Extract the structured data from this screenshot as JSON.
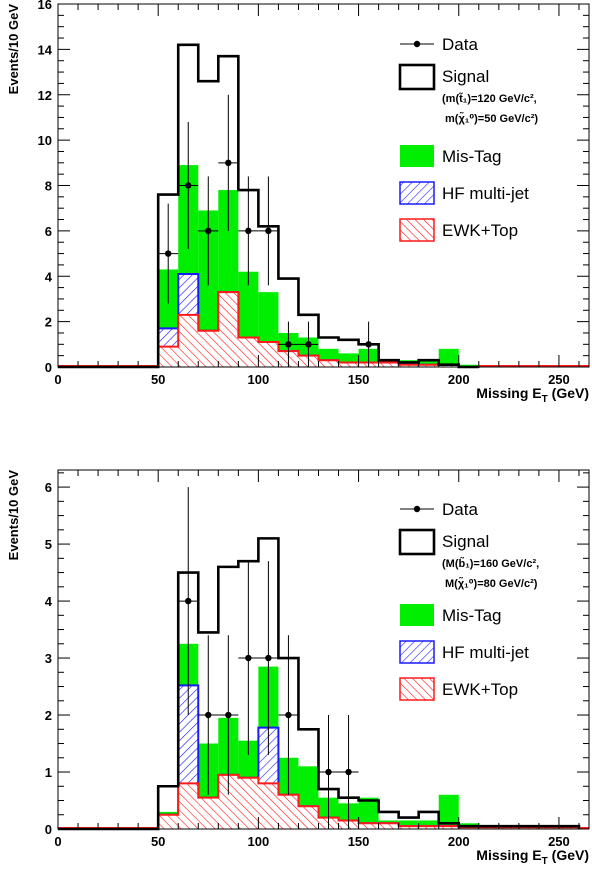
{
  "chart_data": [
    {
      "type": "bar",
      "xlabel_main": "Missing E",
      "xlabel_sub": "T",
      "xlabel_unit": " (GeV)",
      "ylabel": "Events/10 GeV",
      "xlim": [
        0,
        265
      ],
      "ylim": [
        0,
        16
      ],
      "xticks": [
        0,
        50,
        100,
        150,
        200,
        250
      ],
      "yticks": [
        0,
        2,
        4,
        6,
        8,
        10,
        12,
        14,
        16
      ],
      "bin_width": 10,
      "legend": {
        "data": "Data",
        "signal": "Signal",
        "note_line1": "(m(t̃₁)=120 GeV/c², ",
        "note_line2": "m(χ̃₁⁰)=50 GeV/c²)",
        "mistag": "Mis-Tag",
        "hf": "HF multi-jet",
        "ewk": "EWK+Top"
      },
      "bin_edges": [
        50,
        60,
        70,
        80,
        90,
        100,
        110,
        120,
        130,
        140,
        150,
        160,
        170,
        180,
        190,
        200
      ],
      "ewk": [
        0.9,
        2.3,
        1.6,
        3.3,
        1.3,
        1.1,
        0.7,
        0.5,
        0.3,
        0.2,
        0.2,
        0.2,
        0.1,
        0.1,
        0.1,
        0.0
      ],
      "hf": [
        1.7,
        4.1,
        1.6,
        3.3,
        1.3,
        1.1,
        0.7,
        0.5,
        0.3,
        0.2,
        0.2,
        0.2,
        0.1,
        0.1,
        0.1,
        0.0
      ],
      "mistag": [
        4.3,
        8.9,
        6.9,
        7.8,
        4.2,
        3.3,
        1.5,
        1.3,
        0.8,
        0.6,
        0.8,
        0.3,
        0.3,
        0.3,
        0.8,
        0.1
      ],
      "signal": [
        7.6,
        14.2,
        12.6,
        13.7,
        7.8,
        6.2,
        3.9,
        2.3,
        1.3,
        1.2,
        1.0,
        0.3,
        0.2,
        0.3,
        0.1,
        0.0
      ],
      "data_points": [
        {
          "x": 55,
          "y": 5,
          "err": 2.2
        },
        {
          "x": 65,
          "y": 8,
          "err": 2.8
        },
        {
          "x": 75,
          "y": 6,
          "err": 2.4
        },
        {
          "x": 85,
          "y": 9,
          "err": 3.0
        },
        {
          "x": 95,
          "y": 6,
          "err": 2.4
        },
        {
          "x": 105,
          "y": 6,
          "err": 2.4
        },
        {
          "x": 115,
          "y": 1,
          "err": 1.0
        },
        {
          "x": 125,
          "y": 1,
          "err": 1.0
        },
        {
          "x": 155,
          "y": 1,
          "err": 1.0
        }
      ]
    },
    {
      "type": "bar",
      "xlabel_main": "Missing E",
      "xlabel_sub": "T",
      "xlabel_unit": " (GeV)",
      "ylabel": "Events/10 GeV",
      "xlim": [
        0,
        265
      ],
      "ylim": [
        0,
        6.3
      ],
      "xticks": [
        0,
        50,
        100,
        150,
        200,
        250
      ],
      "yticks": [
        0,
        1,
        2,
        3,
        4,
        5,
        6
      ],
      "bin_width": 10,
      "legend": {
        "data": "Data",
        "signal": "Signal",
        "note_line1": "(M(b̃₁)=160 GeV/c²,",
        "note_line2": "M(χ̃₁⁰)=80 GeV/c²)",
        "mistag": "Mis-Tag",
        "hf": "HF multi-jet",
        "ewk": "EWK+Top"
      },
      "bin_edges": [
        50,
        60,
        70,
        80,
        90,
        100,
        110,
        120,
        130,
        140,
        150,
        160,
        170,
        180,
        190,
        200,
        210,
        220,
        230,
        240,
        250
      ],
      "ewk": [
        0.25,
        0.8,
        0.55,
        0.95,
        0.9,
        0.8,
        0.6,
        0.4,
        0.2,
        0.15,
        0.1,
        0.1,
        0.05,
        0.05,
        0.05,
        0.03,
        0.03,
        0.03,
        0.03,
        0.03,
        0.03
      ],
      "hf": [
        0.25,
        2.52,
        0.55,
        0.95,
        0.9,
        1.78,
        0.6,
        0.4,
        0.2,
        0.15,
        0.1,
        0.1,
        0.05,
        0.05,
        0.05,
        0.03,
        0.03,
        0.03,
        0.03,
        0.03,
        0.03
      ],
      "mistag": [
        0.3,
        3.25,
        1.5,
        1.95,
        1.55,
        2.85,
        1.25,
        1.1,
        0.55,
        0.45,
        0.55,
        0.15,
        0.15,
        0.15,
        0.6,
        0.1,
        0.05,
        0.05,
        0.05,
        0.05,
        0.05
      ],
      "signal": [
        0.75,
        4.5,
        3.45,
        4.6,
        4.7,
        5.1,
        3.0,
        1.75,
        0.7,
        0.55,
        0.5,
        0.3,
        0.2,
        0.3,
        0.1,
        0.05,
        0.05,
        0.05,
        0.05,
        0.05,
        0.05
      ],
      "data_points": [
        {
          "x": 65,
          "y": 4,
          "err": 2.0
        },
        {
          "x": 75,
          "y": 2,
          "err": 1.4
        },
        {
          "x": 85,
          "y": 2,
          "err": 1.4
        },
        {
          "x": 95,
          "y": 3,
          "err": 1.7
        },
        {
          "x": 105,
          "y": 3,
          "err": 1.7
        },
        {
          "x": 115,
          "y": 2,
          "err": 1.4
        },
        {
          "x": 135,
          "y": 1,
          "err": 1.0
        },
        {
          "x": 145,
          "y": 1,
          "err": 1.0
        }
      ]
    }
  ],
  "colors": {
    "signal": "#000000",
    "mistag": "#00ee00",
    "hf": "#1a1aff",
    "ewk": "#ff1a1a",
    "data": "#000000"
  }
}
